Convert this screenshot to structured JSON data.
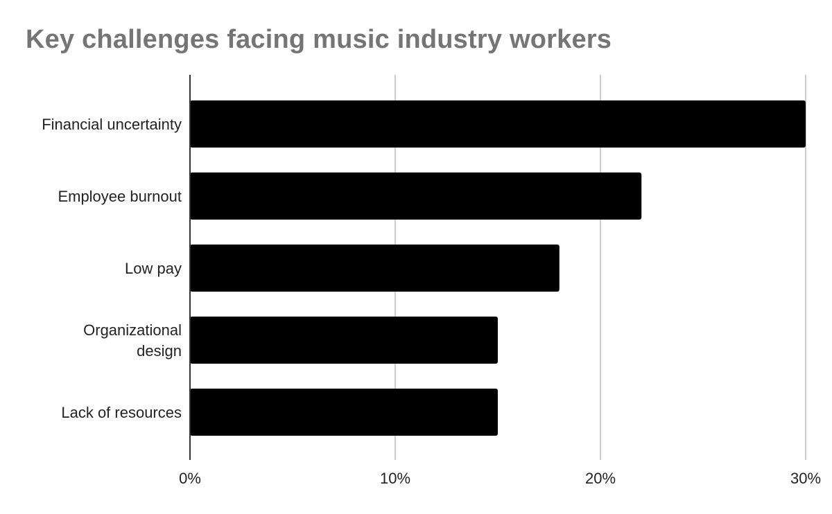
{
  "chart_data": {
    "type": "bar",
    "orientation": "horizontal",
    "title": "Key challenges facing music industry workers",
    "categories": [
      [
        "Financial uncertainty"
      ],
      [
        "Employee burnout"
      ],
      [
        "Low pay"
      ],
      [
        "Organizational",
        "design"
      ],
      [
        "Lack of resources"
      ]
    ],
    "values": [
      30,
      22,
      18,
      15,
      15
    ],
    "xlim": [
      0,
      30
    ],
    "x_ticks": [
      0,
      10,
      20,
      30
    ],
    "x_tick_labels": [
      "0%",
      "10%",
      "20%",
      "30%"
    ],
    "xlabel": "",
    "ylabel": "",
    "grid": true,
    "legend": "none",
    "colors": {
      "bar": "#000000",
      "grid": "#cccccc",
      "axis": "#333333",
      "title": "#757575",
      "text": "#222222"
    }
  }
}
